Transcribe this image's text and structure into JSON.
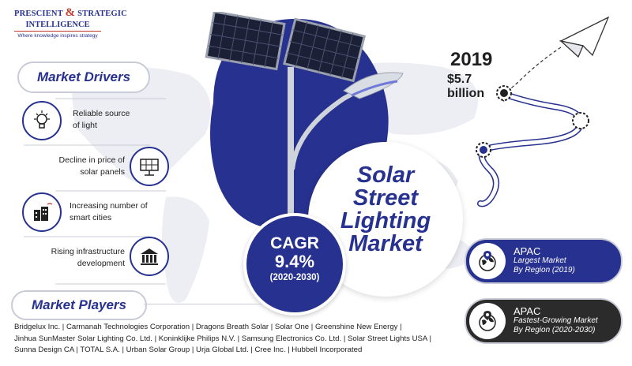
{
  "logo": {
    "line1": "PRESCIENT",
    "ampersand": "&",
    "line1b": "STRATEGIC",
    "line2": "INTELLIGENCE",
    "tagline": "Where knowledge inspires strategy"
  },
  "drivers": {
    "heading": "Market Drivers",
    "items": [
      {
        "icon": "idea-bulb-icon",
        "text": "Reliable source of light"
      },
      {
        "icon": "solar-panel-icon",
        "text": "Decline in price of solar panels"
      },
      {
        "icon": "smart-city-icon",
        "text": "Increasing number of smart cities"
      },
      {
        "icon": "infrastructure-icon",
        "text": "Rising infrastructure development"
      }
    ]
  },
  "title": {
    "line1": "Solar",
    "line2": "Street",
    "line3": "Lighting",
    "line4": "Market"
  },
  "cagr": {
    "label": "CAGR",
    "value": "9.4%",
    "period": "(2020-2030)"
  },
  "size": {
    "year": "2019",
    "value": "$5.7",
    "unit": "billion"
  },
  "regions": [
    {
      "name": "APAC",
      "line1": "Largest Market",
      "line2": "By Region (2019)",
      "color": "#27318f"
    },
    {
      "name": "APAC",
      "line1": "Fastest-Growing Market",
      "line2": "By Region (2020-2030)",
      "color": "#2b2b2b"
    }
  ],
  "players": {
    "heading": "Market Players",
    "line1": "Bridgelux Inc. | Carmanah Technologies Corporation | Dragons Breath Solar | Solar One | Greenshine New Energy |",
    "line2": "Jinhua SunMaster Solar Lighting Co. Ltd. | Koninklijke Philips N.V. | Samsung Electronics Co. Ltd. | Solar Street Lights USA |",
    "line3": "Sunna Design CA | TOTAL S.A. | Urban Solar Group | Urja Global Ltd. | Cree Inc. | Hubbell Incorporated"
  },
  "colors": {
    "primary": "#27318f",
    "dark": "#2b2b2b",
    "accent": "#c0392b",
    "map": "#e9ecf2"
  }
}
